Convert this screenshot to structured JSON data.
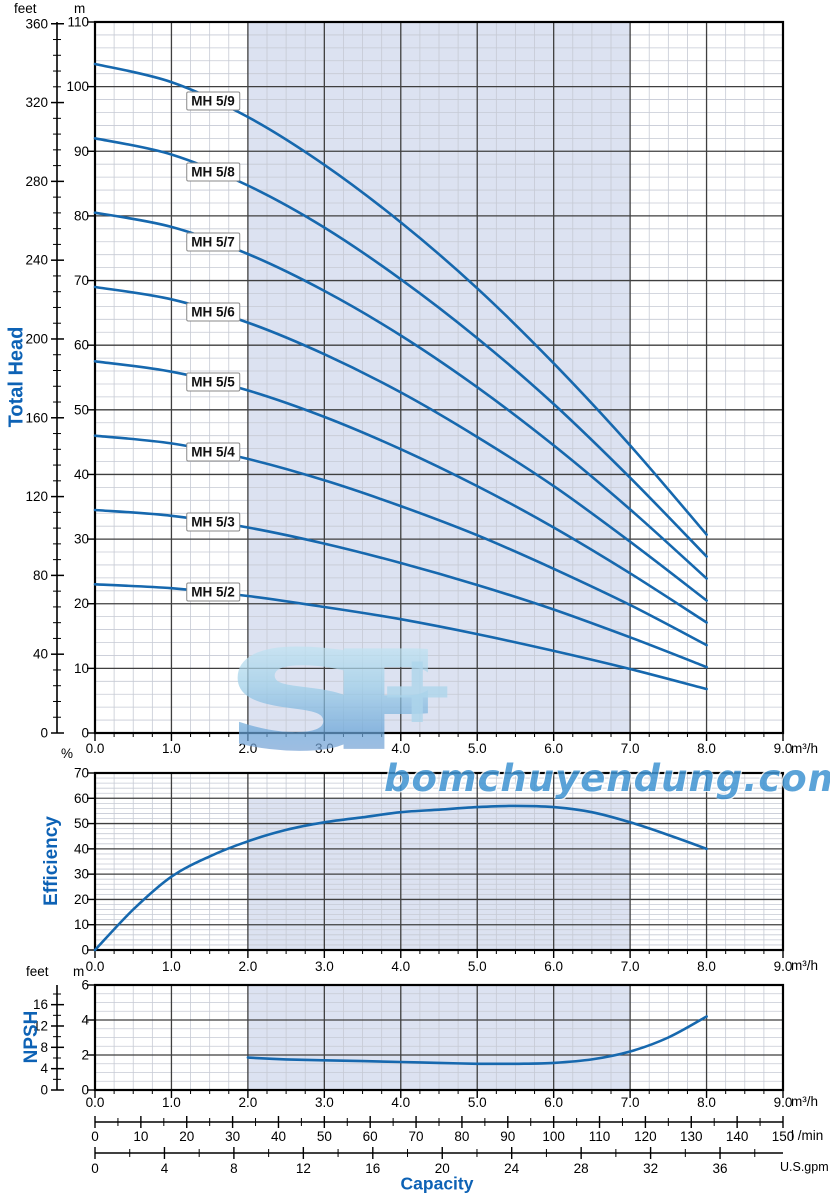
{
  "page": {
    "axis_titles": {
      "head": "Total Head",
      "efficiency": "Efficiency",
      "npsh": "NPSH",
      "capacity": "Capacity"
    },
    "units": {
      "feet": "feet",
      "m": "m",
      "percent": "%",
      "m3h": "m³/h",
      "lmin": "l /min",
      "usgpm": "U.S.gpm"
    },
    "watermark": {
      "letter_s": "S",
      "plus": "+",
      "letter_p": "P",
      "domain": "bomchuyendung.com"
    },
    "colors": {
      "curve": "#1668ae",
      "band": "#dce2f1",
      "grid_major": "#3f3f3f",
      "grid_minor": "#c6cad4",
      "border": "#000000",
      "axis_title": "#0d62b5"
    }
  },
  "chart_data": [
    {
      "id": "head",
      "type": "line",
      "ylabel": "Total Head",
      "xlabel": "Capacity",
      "x_unit": "m³/h",
      "y_unit_primary": "m",
      "y_unit_secondary": "feet",
      "xlim": [
        0,
        9
      ],
      "ylim": [
        0,
        110
      ],
      "x_major": 1,
      "x_minor": 0.25,
      "y_major": 10,
      "y_minor": 2,
      "x_tick_labels": [
        "0.0",
        "1.0",
        "2.0",
        "3.0",
        "4.0",
        "5.0",
        "6.0",
        "7.0",
        "8.0",
        "9.0"
      ],
      "y_tick_labels_m": [
        "0",
        "10",
        "20",
        "30",
        "40",
        "50",
        "60",
        "70",
        "80",
        "90",
        "100",
        "110"
      ],
      "y_tick_labels_feet": [
        "0",
        "40",
        "80",
        "120",
        "160",
        "200",
        "240",
        "280",
        "320",
        "360"
      ],
      "feet_major_step": 40,
      "feet_minor_step": 8,
      "operating_band_x": [
        2,
        7
      ],
      "label_q": 1.55,
      "x": [
        0,
        1,
        2,
        3,
        4,
        5,
        6,
        7,
        8
      ],
      "series": [
        {
          "name": "MH 5/9",
          "stages": 9,
          "values": [
            103.5,
            100.7,
            95.3,
            87.9,
            79.0,
            68.8,
            57.2,
            44.5,
            30.7
          ]
        },
        {
          "name": "MH 5/8",
          "stages": 8,
          "values": [
            92.0,
            89.5,
            84.7,
            78.2,
            70.2,
            61.1,
            50.9,
            39.5,
            27.3
          ]
        },
        {
          "name": "MH 5/7",
          "stages": 7,
          "values": [
            80.5,
            78.3,
            74.1,
            68.4,
            61.5,
            53.5,
            44.5,
            34.6,
            23.9
          ]
        },
        {
          "name": "MH 5/6",
          "stages": 6,
          "values": [
            69.0,
            67.1,
            63.5,
            58.6,
            52.7,
            45.8,
            38.2,
            29.6,
            20.5
          ]
        },
        {
          "name": "MH 5/5",
          "stages": 5,
          "values": [
            57.5,
            55.9,
            53.0,
            48.9,
            43.9,
            38.2,
            31.8,
            24.7,
            17.1
          ]
        },
        {
          "name": "MH 5/4",
          "stages": 4,
          "values": [
            46.0,
            44.8,
            42.4,
            39.1,
            35.1,
            30.6,
            25.4,
            19.8,
            13.6
          ]
        },
        {
          "name": "MH 5/3",
          "stages": 3,
          "values": [
            34.5,
            33.6,
            31.8,
            29.3,
            26.3,
            22.9,
            19.1,
            14.8,
            10.2
          ]
        },
        {
          "name": "MH 5/2",
          "stages": 2,
          "values": [
            23.0,
            22.4,
            21.2,
            19.5,
            17.6,
            15.3,
            12.7,
            9.9,
            6.8
          ]
        }
      ]
    },
    {
      "id": "efficiency",
      "type": "line",
      "ylabel": "Efficiency",
      "y_unit_primary": "%",
      "xlim": [
        0,
        9
      ],
      "ylim": [
        0,
        70
      ],
      "x_major": 1,
      "x_minor": 0.25,
      "y_major": 10,
      "y_minor": 2,
      "x_tick_labels": [
        "0.0",
        "1.0",
        "2.0",
        "3.0",
        "4.0",
        "5.0",
        "6.0",
        "7.0",
        "8.0",
        "9.0"
      ],
      "y_tick_labels": [
        "0",
        "10",
        "20",
        "30",
        "40",
        "50",
        "60",
        "70"
      ],
      "operating_band_x": [
        2,
        7
      ],
      "band_top": 60,
      "x": [
        0,
        0.5,
        1,
        1.5,
        2,
        2.5,
        3,
        3.5,
        4,
        4.5,
        5,
        5.5,
        6,
        6.5,
        7,
        7.5,
        8
      ],
      "values": [
        0,
        16,
        29,
        37,
        43,
        47.5,
        50.5,
        52.5,
        54.5,
        55.5,
        56.5,
        57,
        56.5,
        54.5,
        50.5,
        45.5,
        40
      ]
    },
    {
      "id": "npsh",
      "type": "line",
      "ylabel": "NPSH",
      "y_unit_primary": "m",
      "y_unit_secondary": "feet",
      "xlim": [
        0,
        9
      ],
      "ylim": [
        0,
        6
      ],
      "x_major": 1,
      "x_minor": 0.25,
      "y_major": 2,
      "y_minor": 0.5,
      "x_tick_labels": [
        "0.0",
        "1.0",
        "2.0",
        "3.0",
        "4.0",
        "5.0",
        "6.0",
        "7.0",
        "8.0",
        "9.0"
      ],
      "y_tick_labels_m": [
        "0",
        "2",
        "4",
        "6"
      ],
      "y_tick_labels_feet": [
        "0",
        "4",
        "8",
        "12",
        "16"
      ],
      "feet_major_step": 4,
      "feet_minor_step": 2,
      "operating_band_x": [
        2,
        7
      ],
      "x": [
        2,
        2.5,
        3,
        3.5,
        4,
        4.5,
        5,
        5.5,
        6,
        6.5,
        7,
        7.5,
        8
      ],
      "values": [
        1.85,
        1.75,
        1.7,
        1.65,
        1.6,
        1.55,
        1.5,
        1.5,
        1.55,
        1.75,
        2.2,
        3.0,
        4.2
      ]
    }
  ],
  "capacity_axes": {
    "lmin": {
      "unit": "l /min",
      "min": 0,
      "max": 150,
      "major": 10,
      "minor": 5,
      "labels": [
        "0",
        "10",
        "20",
        "30",
        "40",
        "50",
        "60",
        "70",
        "80",
        "90",
        "100",
        "110",
        "120",
        "130",
        "140",
        "150"
      ]
    },
    "usgpm": {
      "unit": "U.S.gpm",
      "min": 0,
      "major": 4,
      "minor": 2,
      "per_m3h": 4.4029,
      "labels": [
        "0",
        "4",
        "8",
        "12",
        "16",
        "20",
        "24",
        "28",
        "32",
        "36"
      ]
    }
  }
}
